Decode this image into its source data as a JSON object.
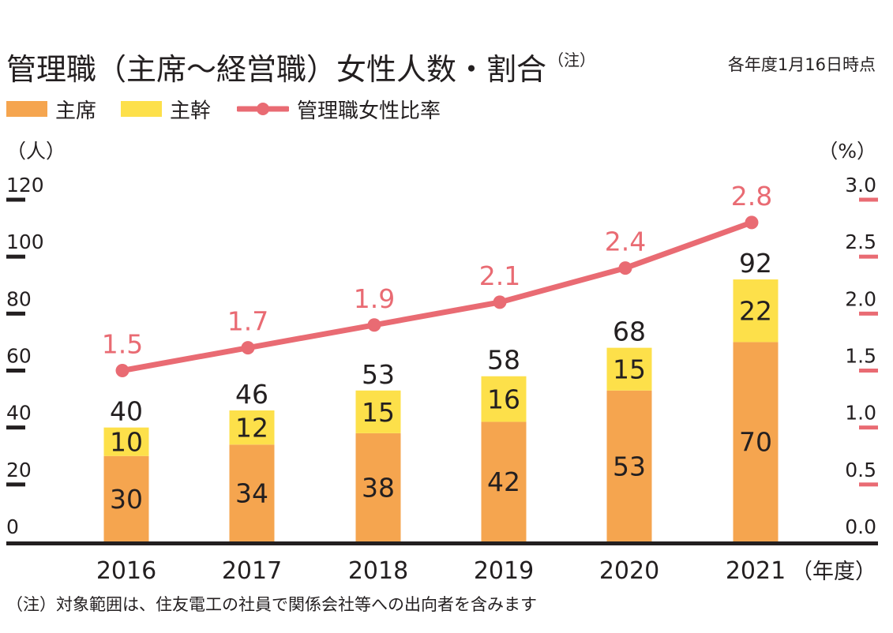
{
  "title": "管理職（主席〜経営職）女性人数・割合",
  "title_note": "（注）",
  "as_of": "各年度1月16日時点",
  "legend": {
    "senior": "主席",
    "chief": "主幹",
    "ratio": "管理職女性比率"
  },
  "colors": {
    "senior": "#f5a54f",
    "chief": "#fde04a",
    "ratio": "#e96b73",
    "axis": "#231f20",
    "text": "#231f20"
  },
  "chart_data": {
    "type": "bar",
    "stacked": true,
    "categories": [
      "2016",
      "2017",
      "2018",
      "2019",
      "2020",
      "2021"
    ],
    "series": [
      {
        "name": "主席",
        "values": [
          30,
          34,
          38,
          42,
          53,
          70
        ]
      },
      {
        "name": "主幹",
        "values": [
          10,
          12,
          15,
          16,
          15,
          22
        ]
      }
    ],
    "totals": [
      40,
      46,
      53,
      58,
      68,
      92
    ],
    "line_series": {
      "name": "管理職女性比率",
      "axis": "right",
      "values": [
        1.5,
        1.7,
        1.9,
        2.1,
        2.4,
        2.8
      ],
      "labels": [
        "1.5",
        "1.7",
        "1.9",
        "2.1",
        "2.4",
        "2.8"
      ]
    },
    "y_left": {
      "unit": "（人）",
      "min": 0,
      "max": 120,
      "ticks": [
        "0",
        "20",
        "40",
        "60",
        "80",
        "100",
        "120"
      ]
    },
    "y_right": {
      "unit": "（%）",
      "min": 0,
      "max": 3.0,
      "ticks": [
        "0.0",
        "0.5",
        "1.0",
        "1.5",
        "2.0",
        "2.5",
        "3.0"
      ]
    },
    "x_unit": "（年度）"
  },
  "footnote": "（注）対象範囲は、住友電工の社員で関係会社等への出向者を含みます"
}
